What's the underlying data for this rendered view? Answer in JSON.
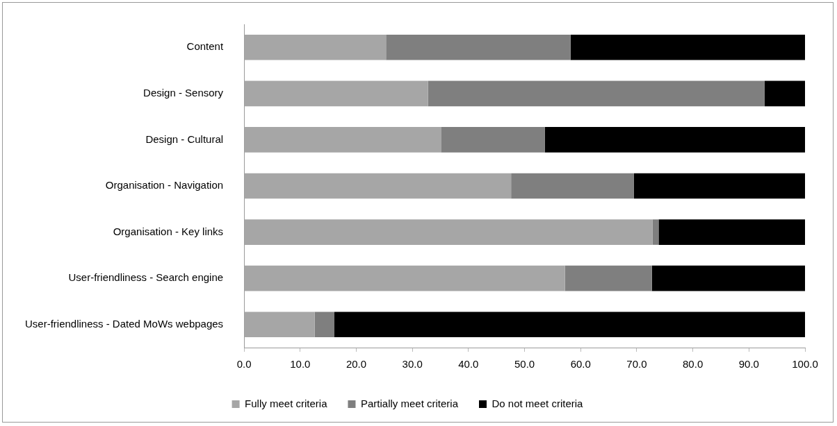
{
  "chart_data": {
    "type": "bar",
    "orientation": "horizontal",
    "stacked": true,
    "categories": [
      "Content",
      "Design - Sensory",
      "Design - Cultural",
      "Organisation - Navigation",
      "Organisation - Key links",
      "User-friendliness - Search engine",
      "User-friendliness - Dated MoWs webpages"
    ],
    "series": [
      {
        "name": "Fully meet criteria",
        "color": "#a6a6a6",
        "values": [
          25.3,
          32.8,
          35.1,
          47.6,
          72.8,
          57.2,
          12.6
        ]
      },
      {
        "name": "Partially meet criteria",
        "color": "#7f7f7f",
        "values": [
          32.9,
          60.0,
          18.5,
          21.9,
          1.1,
          15.5,
          3.5
        ]
      },
      {
        "name": "Do not meet criteria",
        "color": "#000000",
        "values": [
          41.8,
          7.2,
          46.4,
          30.5,
          26.1,
          27.3,
          83.9
        ]
      }
    ],
    "xlim": [
      0,
      100
    ],
    "xticks": [
      {
        "value": 0,
        "label": "0.0"
      },
      {
        "value": 10,
        "label": "10.0"
      },
      {
        "value": 20,
        "label": "20.0"
      },
      {
        "value": 30,
        "label": "30.0"
      },
      {
        "value": 40,
        "label": "40.0"
      },
      {
        "value": 50,
        "label": "50.0"
      },
      {
        "value": 60,
        "label": "60.0"
      },
      {
        "value": 70,
        "label": "70.0"
      },
      {
        "value": 80,
        "label": "80.0"
      },
      {
        "value": 90,
        "label": "90.0"
      },
      {
        "value": 100,
        "label": "100.0"
      }
    ],
    "grid": false,
    "legend": "bottom"
  }
}
